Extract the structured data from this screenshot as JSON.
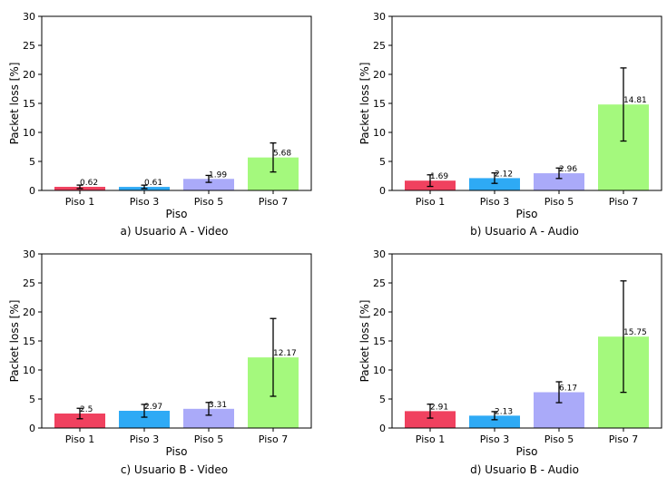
{
  "chart_data": [
    {
      "type": "bar",
      "title": "",
      "caption": "a) Usuario A - Video",
      "xlabel": "Piso",
      "ylabel": "Packet loss [%]",
      "ylim": [
        0,
        30
      ],
      "yticks": [
        0,
        5,
        10,
        15,
        20,
        25,
        30
      ],
      "categories": [
        "Piso 1",
        "Piso 3",
        "Piso 5",
        "Piso 7"
      ],
      "values": [
        0.62,
        0.61,
        1.99,
        5.68
      ],
      "value_labels": [
        "0.62",
        "0.61",
        "1.99",
        "5.68"
      ],
      "errors": [
        0.3,
        0.3,
        0.6,
        2.5
      ],
      "colors": [
        "#f0415f",
        "#2eaaf5",
        "#aaaaf9",
        "#a4f97d"
      ]
    },
    {
      "type": "bar",
      "title": "",
      "caption": "b) Usuario A - Audio",
      "xlabel": "Piso",
      "ylabel": "Packet loss [%]",
      "ylim": [
        0,
        30
      ],
      "yticks": [
        0,
        5,
        10,
        15,
        20,
        25,
        30
      ],
      "categories": [
        "Piso 1",
        "Piso 3",
        "Piso 5",
        "Piso 7"
      ],
      "values": [
        1.69,
        2.12,
        2.96,
        14.81
      ],
      "value_labels": [
        "1.69",
        "2.12",
        "2.96",
        "14.81"
      ],
      "errors": [
        1.0,
        0.9,
        0.9,
        6.3
      ],
      "colors": [
        "#f0415f",
        "#2eaaf5",
        "#aaaaf9",
        "#a4f97d"
      ]
    },
    {
      "type": "bar",
      "title": "",
      "caption": "c) Usuario B - Video",
      "xlabel": "Piso",
      "ylabel": "Packet loss [%]",
      "ylim": [
        0,
        30
      ],
      "yticks": [
        0,
        5,
        10,
        15,
        20,
        25,
        30
      ],
      "categories": [
        "Piso 1",
        "Piso 3",
        "Piso 5",
        "Piso 7"
      ],
      "values": [
        2.5,
        2.97,
        3.31,
        12.17
      ],
      "value_labels": [
        "2.5",
        "2.97",
        "3.31",
        "12.17"
      ],
      "errors": [
        0.9,
        1.1,
        1.1,
        6.7
      ],
      "colors": [
        "#f0415f",
        "#2eaaf5",
        "#aaaaf9",
        "#a4f97d"
      ]
    },
    {
      "type": "bar",
      "title": "",
      "caption": "d) Usuario B - Audio",
      "xlabel": "Piso",
      "ylabel": "Packet loss [%]",
      "ylim": [
        0,
        30
      ],
      "yticks": [
        0,
        5,
        10,
        15,
        20,
        25,
        30
      ],
      "categories": [
        "Piso 1",
        "Piso 3",
        "Piso 5",
        "Piso 7"
      ],
      "values": [
        2.91,
        2.13,
        6.17,
        15.75
      ],
      "value_labels": [
        "2.91",
        "2.13",
        "6.17",
        "15.75"
      ],
      "errors": [
        1.2,
        0.7,
        1.8,
        9.6
      ],
      "colors": [
        "#f0415f",
        "#2eaaf5",
        "#aaaaf9",
        "#a4f97d"
      ]
    }
  ]
}
